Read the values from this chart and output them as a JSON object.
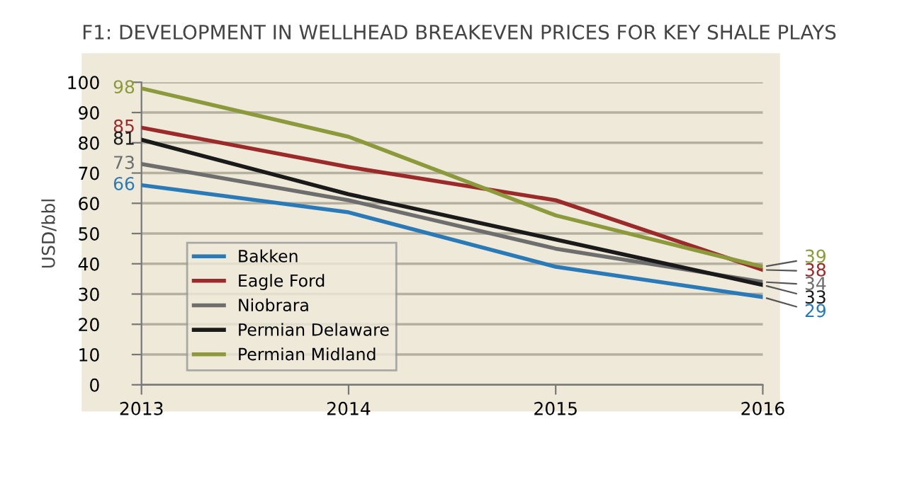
{
  "chart_data": {
    "type": "line",
    "title": "F1: DEVELOPMENT IN WELLHEAD BREAKEVEN PRICES FOR KEY SHALE PLAYS",
    "ylabel": "USD/bbl",
    "categories": [
      "2013",
      "2014",
      "2015",
      "2016"
    ],
    "series": [
      {
        "name": "Bakken",
        "color": "#2a7ab8",
        "values": [
          66,
          57,
          39,
          29
        ],
        "value_labels": [
          "66",
          null,
          null,
          "29"
        ]
      },
      {
        "name": "Eagle Ford",
        "color": "#9b2a2a",
        "values": [
          85,
          72,
          61,
          38
        ],
        "value_labels": [
          "85",
          null,
          null,
          "38"
        ]
      },
      {
        "name": "Niobrara",
        "color": "#6e6e6e",
        "values": [
          73,
          61,
          45,
          34
        ],
        "value_labels": [
          "73",
          null,
          null,
          "34"
        ]
      },
      {
        "name": "Permian Delaware",
        "color": "#1a1a1a",
        "values": [
          81,
          63,
          48,
          33
        ],
        "value_labels": [
          "81",
          null,
          null,
          "33"
        ]
      },
      {
        "name": "Permian Midland",
        "color": "#8c9a3c",
        "values": [
          98,
          82,
          56,
          39
        ],
        "value_labels": [
          "98",
          null,
          null,
          "39"
        ]
      }
    ],
    "ylim": [
      0,
      100
    ],
    "yticks": [
      0,
      10,
      20,
      30,
      40,
      50,
      60,
      70,
      80,
      90,
      100
    ],
    "grid": "y",
    "legend": "bottom left",
    "marker": "none",
    "line_style": "solid"
  }
}
